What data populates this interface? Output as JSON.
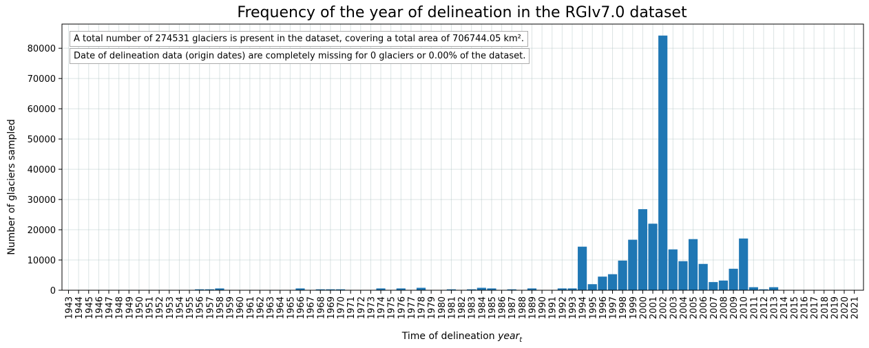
{
  "chart_data": {
    "type": "bar",
    "title": "Frequency of the year of delineation in the RGIv7.0 dataset",
    "xlabel": "Time of delineation year_t",
    "xlabel_main": "Time of delineation ",
    "xlabel_italic": "year",
    "xlabel_sub": "t",
    "ylabel": "Number of glaciers sampled",
    "ylim": [
      0,
      88000
    ],
    "yticks": [
      0,
      10000,
      20000,
      30000,
      40000,
      50000,
      60000,
      70000,
      80000
    ],
    "grid": true,
    "bar_color": "#1f77b4",
    "categories": [
      "1943",
      "1944",
      "1945",
      "1946",
      "1947",
      "1948",
      "1949",
      "1950",
      "1951",
      "1952",
      "1953",
      "1954",
      "1955",
      "1956",
      "1957",
      "1958",
      "1959",
      "1960",
      "1961",
      "1962",
      "1963",
      "1964",
      "1965",
      "1966",
      "1967",
      "1968",
      "1969",
      "1970",
      "1971",
      "1972",
      "1973",
      "1974",
      "1975",
      "1976",
      "1977",
      "1978",
      "1979",
      "1980",
      "1981",
      "1982",
      "1983",
      "1984",
      "1985",
      "1986",
      "1987",
      "1988",
      "1989",
      "1990",
      "1991",
      "1992",
      "1993",
      "1994",
      "1995",
      "1996",
      "1997",
      "1998",
      "1999",
      "2000",
      "2001",
      "2002",
      "2003",
      "2004",
      "2005",
      "2006",
      "2007",
      "2008",
      "2009",
      "2010",
      "2011",
      "2012",
      "2013",
      "2014",
      "2015",
      "2016",
      "2017",
      "2018",
      "2019",
      "2020",
      "2021"
    ],
    "values": [
      0,
      0,
      0,
      0,
      0,
      0,
      0,
      0,
      0,
      0,
      0,
      0,
      0,
      300,
      300,
      600,
      0,
      0,
      0,
      0,
      0,
      0,
      0,
      600,
      0,
      300,
      300,
      300,
      0,
      0,
      0,
      600,
      0,
      600,
      0,
      800,
      0,
      0,
      300,
      0,
      300,
      800,
      600,
      0,
      300,
      0,
      600,
      0,
      0,
      600,
      600,
      14400,
      2000,
      4500,
      5300,
      9800,
      16700,
      26800,
      22000,
      84200,
      13500,
      9600,
      16900,
      8700,
      2700,
      3200,
      7100,
      17100,
      1000,
      300,
      1000,
      0,
      0,
      0,
      0,
      0,
      0,
      0,
      0
    ],
    "annotations": [
      "A total number of 274531 glaciers is present in the dataset, covering a total area of 706744.05 km².",
      "Date of delineation data (origin dates) are completely missing for 0 glaciers or 0.00% of the dataset."
    ]
  }
}
